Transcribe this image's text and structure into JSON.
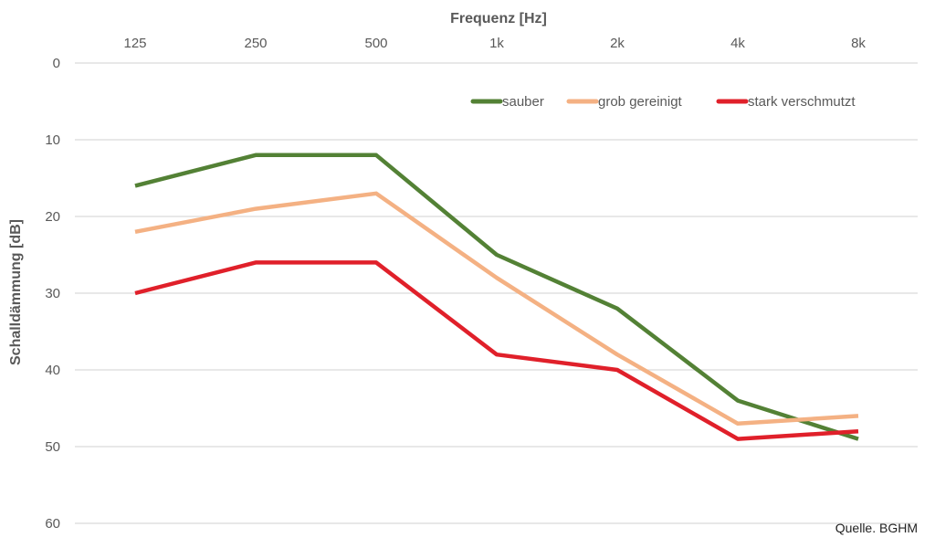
{
  "chart_data": {
    "type": "line",
    "title": "",
    "xlabel": "Frequenz [Hz]",
    "ylabel": "Schalldämmung [dB]",
    "categories": [
      "125",
      "250",
      "500",
      "1k",
      "2k",
      "4k",
      "8k"
    ],
    "y_ticks": [
      "0",
      "10",
      "20",
      "30",
      "40",
      "50",
      "60"
    ],
    "ylim": [
      0,
      60
    ],
    "y_inverted": true,
    "x_axis_position": "top",
    "grid": true,
    "legend_position": "top-right",
    "series": [
      {
        "name": "sauber",
        "color": "#538135",
        "values": [
          16,
          12,
          12,
          25,
          32,
          44,
          49
        ]
      },
      {
        "name": "grob gereinigt",
        "color": "#F4B183",
        "values": [
          22,
          19,
          17,
          28,
          38,
          47,
          46
        ]
      },
      {
        "name": "stark verschmutzt",
        "color": "#E0202A",
        "values": [
          30,
          26,
          26,
          38,
          40,
          49,
          48
        ]
      }
    ],
    "annotation": "Quelle. BGHM"
  }
}
